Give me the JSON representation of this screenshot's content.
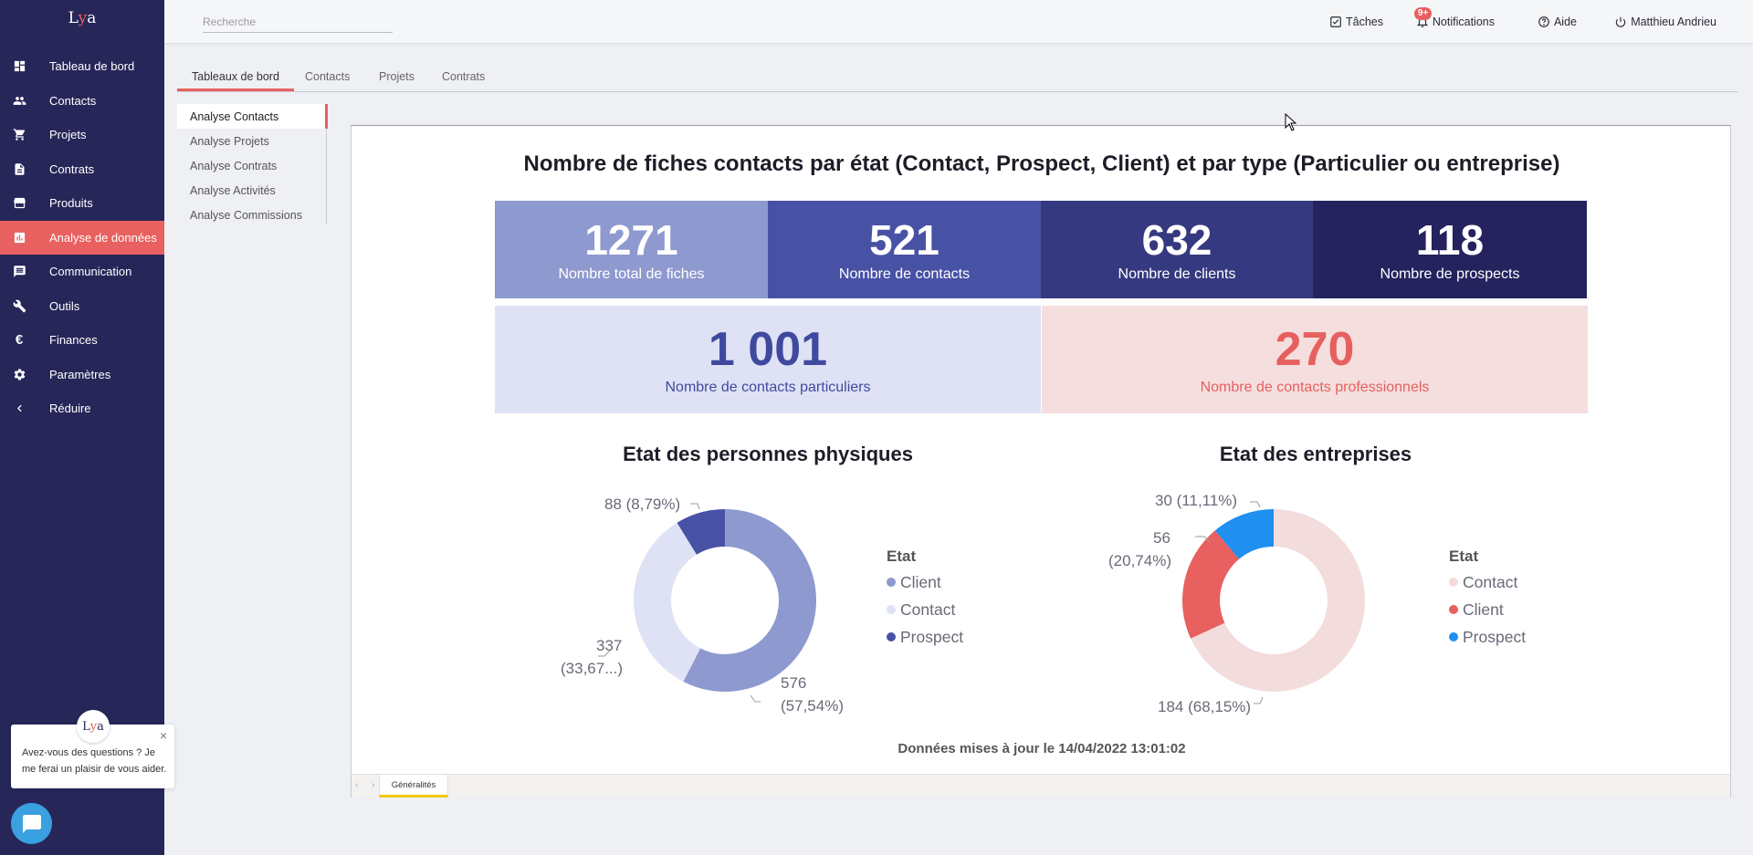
{
  "app": {
    "logo_text": "Lya"
  },
  "sidebar": {
    "items": [
      {
        "label": "Tableau de bord",
        "icon": "dashboard-icon"
      },
      {
        "label": "Contacts",
        "icon": "people-icon"
      },
      {
        "label": "Projets",
        "icon": "cart-icon"
      },
      {
        "label": "Contrats",
        "icon": "document-icon"
      },
      {
        "label": "Produits",
        "icon": "store-icon"
      },
      {
        "label": "Analyse de données",
        "icon": "analytics-icon",
        "active": true
      },
      {
        "label": "Communication",
        "icon": "message-icon"
      },
      {
        "label": "Outils",
        "icon": "tools-icon"
      },
      {
        "label": "Finances",
        "icon": "euro-icon"
      },
      {
        "label": "Paramètres",
        "icon": "gear-icon"
      },
      {
        "label": "Réduire",
        "icon": "chevron-left-icon"
      }
    ]
  },
  "chat": {
    "message": "Avez-vous des questions ? Je me ferai un plaisir de vous aider.",
    "close": "×"
  },
  "header": {
    "search_placeholder": "Recherche",
    "tasks": "Tâches",
    "notifications": "Notifications",
    "notifications_badge": "9+",
    "help": "Aide",
    "user": "Matthieu Andrieu"
  },
  "tabs": [
    "Tableaux de bord",
    "Contacts",
    "Projets",
    "Contrats"
  ],
  "subnav": [
    "Analyse Contacts",
    "Analyse Projets",
    "Analyse Contrats",
    "Analyse Activités",
    "Analyse Commissions"
  ],
  "report": {
    "title": "Nombre de fiches contacts par état (Contact, Prospect, Client) et par type (Particulier ou entreprise)",
    "kpis_row1": [
      {
        "value": "1271",
        "label": "Nombre total de fiches",
        "bg": "#8e99cf"
      },
      {
        "value": "521",
        "label": "Nombre de contacts",
        "bg": "#4752a5"
      },
      {
        "value": "632",
        "label": "Nombre de clients",
        "bg": "#35397f"
      },
      {
        "value": "118",
        "label": "Nombre de prospects",
        "bg": "#24235e"
      }
    ],
    "kpis_row2": [
      {
        "value": "1 001",
        "label": "Nombre de contacts particuliers",
        "bg": "#dfe2f4",
        "color": "#3f4a9e"
      },
      {
        "value": "270",
        "label": "Nombre de contacts professionnels",
        "bg": "#f5dede",
        "color": "#e6605f"
      }
    ],
    "footer": "Données mises à jour le 14/04/2022 13:01:02",
    "page_tab": "Généralités",
    "page_arrows": "‹ ›"
  },
  "chart_data": [
    {
      "type": "pie",
      "title": "Etat des personnes physiques",
      "legend_title": "Etat",
      "categories": [
        "Client",
        "Contact",
        "Prospect"
      ],
      "values": [
        576,
        337,
        88
      ],
      "percent_labels": [
        "(57,54%)",
        "(33,67...)",
        "(8,79%)"
      ],
      "value_labels": [
        "576",
        "337",
        "88 (8,79%)"
      ],
      "colors": [
        "#8e99cf",
        "#dfe2f4",
        "#4752a5"
      ]
    },
    {
      "type": "pie",
      "title": "Etat des entreprises",
      "legend_title": "Etat",
      "categories": [
        "Contact",
        "Client",
        "Prospect"
      ],
      "values": [
        184,
        56,
        30
      ],
      "percent_labels": [
        "184 (68,15%)",
        "(20,74%)",
        "30 (11,11%)"
      ],
      "value_labels": [
        "184 (68,15%)",
        "56",
        "30 (11,11%)"
      ],
      "colors": [
        "#f3dcdc",
        "#e8605f",
        "#1f8ff0"
      ]
    }
  ]
}
